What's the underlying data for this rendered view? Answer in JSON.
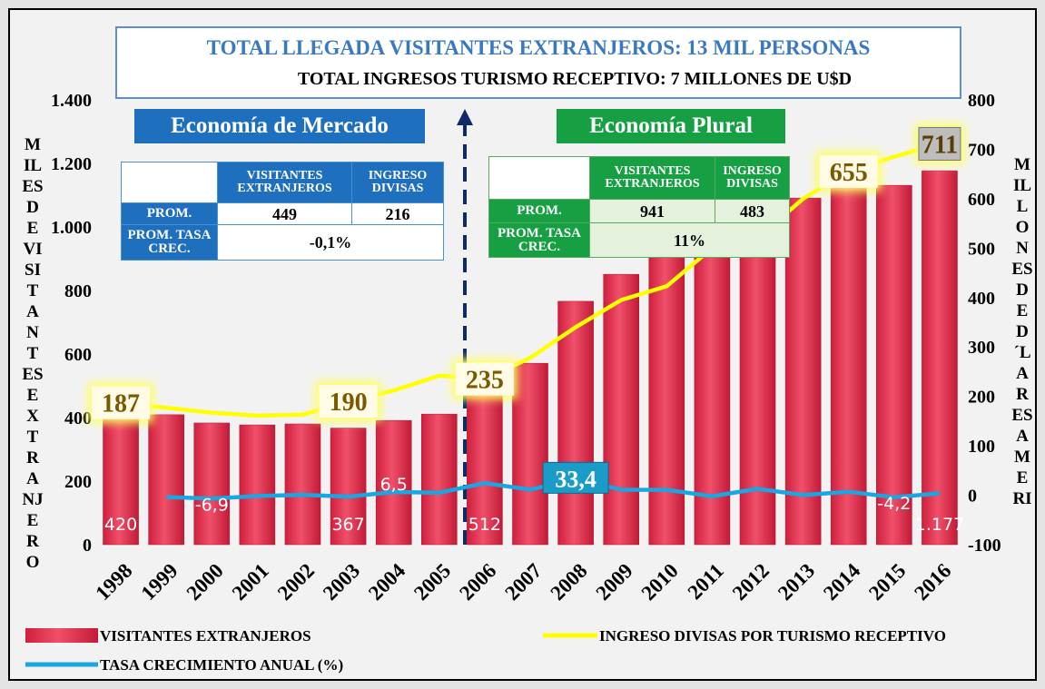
{
  "chart_data": {
    "type": "bar",
    "title": "TOTAL LLEGADA VISITANTES EXTRANJEROS: 13 MIL PERSONAS",
    "subtitle": "TOTAL INGRESOS TURISMO RECEPTIVO: 7 MILLONES DE U$D",
    "y_label": "MILES DE VISITANTES EXTRANJERO",
    "y2_label": "MILLONES DE D´LARES AMERI",
    "categories": [
      "1998",
      "1999",
      "2000",
      "2001",
      "2002",
      "2003",
      "2004",
      "2005",
      "2006",
      "2007",
      "2008",
      "2009",
      "2010",
      "2011",
      "2012",
      "2013",
      "2014",
      "2015",
      "2016"
    ],
    "series": [
      {
        "name": "VISITANTES EXTRANJEROS",
        "type": "bar",
        "color": "#e3284b",
        "values": [
          420,
          409,
          383,
          377,
          380,
          367,
          391,
          411,
          512,
          571,
          766,
          851,
          943,
          975,
          1010,
          1091,
          1129,
          1131,
          1177
        ],
        "value_labels": [
          "420",
          null,
          null,
          null,
          null,
          "367",
          null,
          null,
          "512",
          null,
          null,
          null,
          null,
          null,
          null,
          null,
          null,
          null,
          "1.177"
        ]
      },
      {
        "name": "INGRESO DIVISAS POR TURISMO RECEPTIVO",
        "type": "line",
        "axis": "y2",
        "color": "#ffff00",
        "values": [
          187,
          177,
          167,
          161,
          163,
          190,
          212,
          242,
          235,
          278,
          340,
          395,
          423,
          500,
          520,
          600,
          655,
          685,
          711
        ],
        "value_labels": [
          "187",
          null,
          null,
          null,
          null,
          "190",
          null,
          null,
          "235",
          null,
          null,
          null,
          null,
          null,
          null,
          null,
          "655",
          null,
          "711"
        ]
      },
      {
        "name": "TASA CRECIMIENTO ANUAL (%)",
        "type": "line",
        "axis": "y2",
        "color": "#1aa6e0",
        "values": [
          null,
          -3.6,
          -6.9,
          -1.6,
          0.8,
          -2.9,
          6.5,
          5.1,
          24.6,
          11.3,
          33.4,
          11.1,
          10.9,
          -2,
          13,
          0.5,
          7,
          -4.2,
          4
        ],
        "value_labels": [
          null,
          null,
          "-6,9",
          null,
          null,
          null,
          "6,5",
          null,
          null,
          null,
          "33,4",
          null,
          null,
          null,
          null,
          null,
          null,
          "-4,2",
          null
        ]
      }
    ],
    "ylim": [
      0,
      1400
    ],
    "yticks": [
      0,
      200,
      400,
      600,
      800,
      {
        "value": 1000,
        "label": "1.000"
      },
      {
        "value": 1200,
        "label": "1.200"
      },
      {
        "value": 1400,
        "label": "1.400"
      }
    ],
    "y2lim": [
      -100,
      800
    ],
    "y2ticks": [
      -100,
      0,
      100,
      200,
      300,
      400,
      500,
      600,
      700,
      800
    ],
    "panels": [
      {
        "title": "Economía de Mercado",
        "headers": [
          "VISITANTES EXTRANJEROS",
          "INGRESO DIVISAS"
        ],
        "rows": [
          {
            "label": "PROM.",
            "cells": [
              "449",
              "216"
            ]
          },
          {
            "label": "PROM. TASA CREC.",
            "cells": [
              "-0,1%"
            ]
          }
        ]
      },
      {
        "title": "Economía Plural",
        "headers": [
          "VISITANTES EXTRANJEROS",
          "INGRESO DIVISAS"
        ],
        "rows": [
          {
            "label": "PROM.",
            "cells": [
              "941",
              "483"
            ]
          },
          {
            "label": "PROM. TASA CREC.",
            "cells": [
              "11%"
            ]
          }
        ]
      }
    ]
  }
}
